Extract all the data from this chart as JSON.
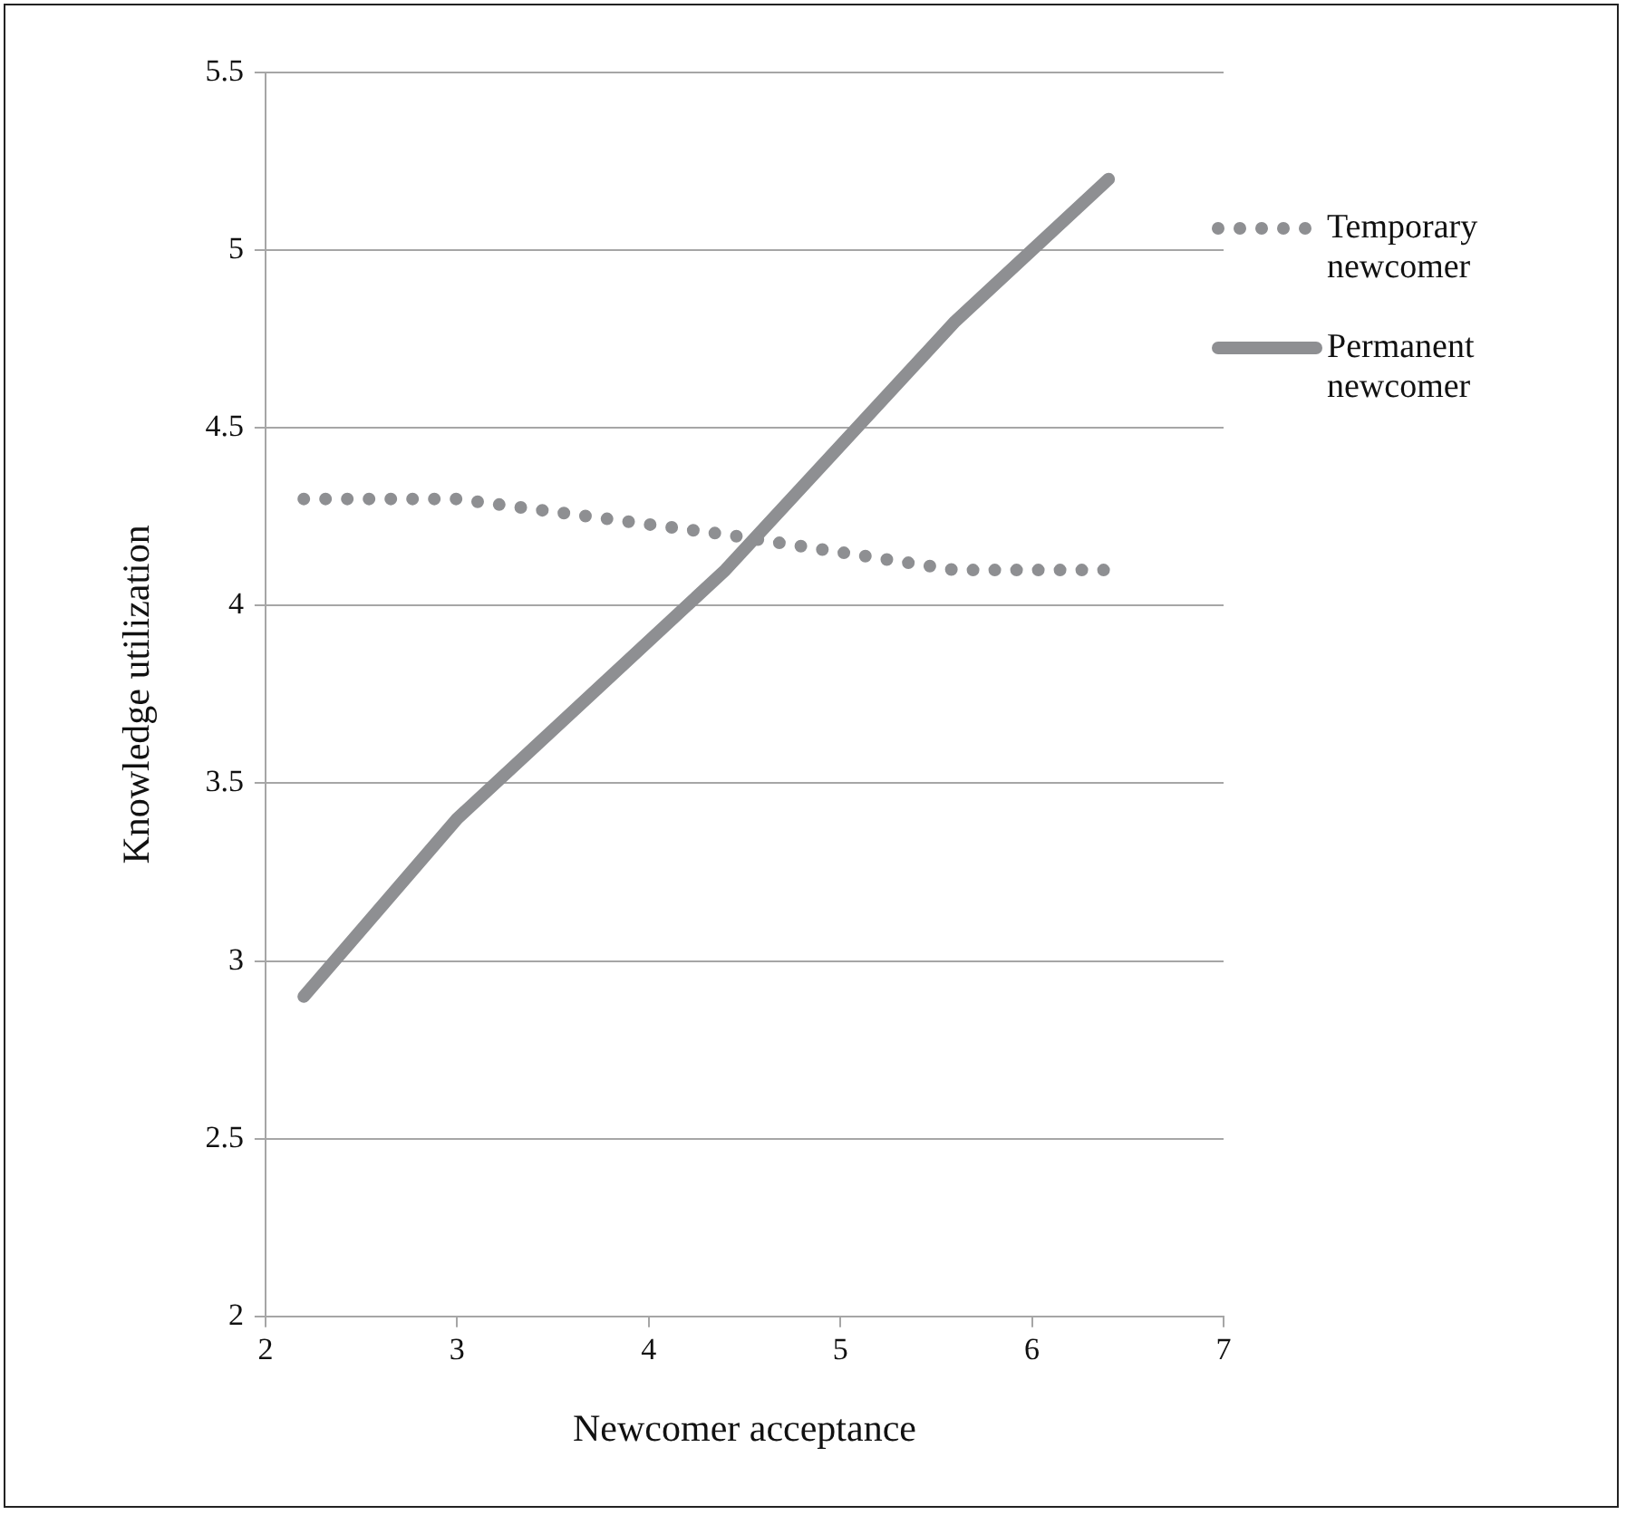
{
  "chart_data": {
    "type": "line",
    "xlabel": "Newcomer acceptance",
    "ylabel": "Knowledge utilization",
    "xlim": [
      2,
      7
    ],
    "xticks": [
      2,
      3,
      4,
      5,
      6,
      7
    ],
    "ylim": [
      2,
      5.5
    ],
    "yticks": [
      2,
      2.5,
      3,
      3.5,
      4,
      4.5,
      5,
      5.5
    ],
    "grid": "y",
    "legend": "right",
    "marker": "none",
    "series": [
      {
        "name": "Temporary newcomer",
        "color": "#8e8f92",
        "line_style": "dotted",
        "x": [
          2.2,
          3,
          4.4,
          5.6,
          6.4
        ],
        "values": [
          4.3,
          4.3,
          4.2,
          4.1,
          4.1
        ]
      },
      {
        "name": "Permanent newcomer",
        "color": "#8e8f92",
        "line_style": "solid",
        "x": [
          2.2,
          3,
          4.4,
          5.6,
          6.4
        ],
        "values": [
          2.9,
          3.4,
          4.1,
          4.8,
          5.2
        ]
      }
    ]
  }
}
